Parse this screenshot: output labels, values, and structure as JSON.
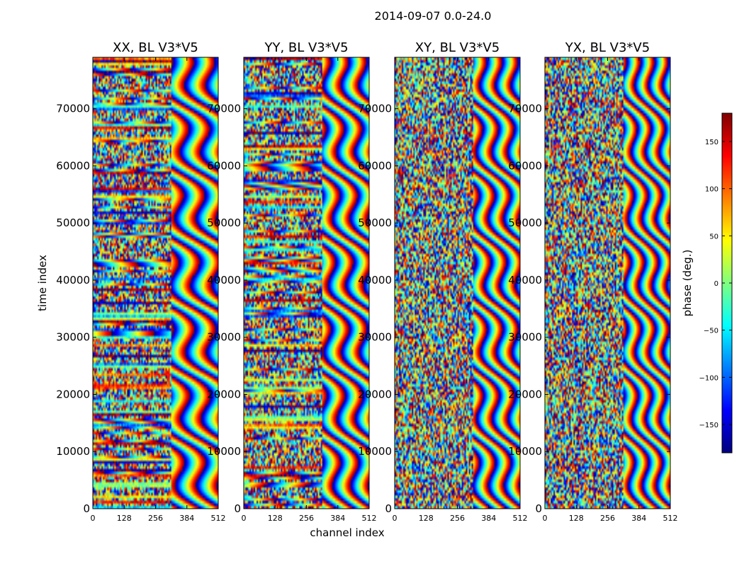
{
  "figure": {
    "suptitle": "2014-09-07 0.0-24.0",
    "xlabel": "channel index",
    "ylabel": "time index",
    "colorbar_label": "phase (deg.)"
  },
  "chart_data": {
    "type": "heatmap",
    "title": "2014-09-07 0.0-24.0",
    "panels": [
      {
        "title": "XX, BL V3*V5",
        "pol": "XX"
      },
      {
        "title": "YY, BL V3*V5",
        "pol": "YY"
      },
      {
        "title": "XY, BL V3*V5",
        "pol": "XY"
      },
      {
        "title": "YX, BL V3*V5",
        "pol": "YX"
      }
    ],
    "xlabel": "channel index",
    "ylabel": "time index",
    "xlim": [
      0,
      512
    ],
    "ylim": [
      0,
      79000
    ],
    "xticks": [
      0,
      128,
      256,
      384,
      512
    ],
    "yticks": [
      0,
      10000,
      20000,
      30000,
      40000,
      50000,
      60000,
      70000
    ],
    "colorbar": {
      "label": "phase (deg.)",
      "range": [
        -180,
        180
      ],
      "ticks": [
        150,
        100,
        50,
        0,
        -50,
        -100,
        -150
      ],
      "tick_labels": [
        "150",
        "100",
        "50",
        "0",
        "−50",
        "−100",
        "−150"
      ],
      "colormap": [
        "#00007f",
        "#0000ff",
        "#007fff",
        "#00ffff",
        "#7fff7f",
        "#ffff00",
        "#ff7f00",
        "#ff0000",
        "#7f0000"
      ]
    }
  }
}
